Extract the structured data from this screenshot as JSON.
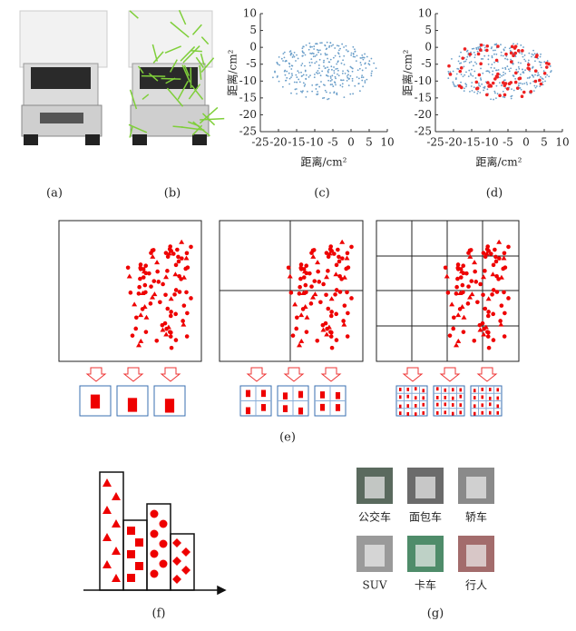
{
  "panel_labels": [
    "(a)",
    "(b)",
    "(c)",
    "(d)",
    "(e)",
    "(f)",
    "(g)"
  ],
  "scatter_plots": [
    {
      "xlabel": "距离/cm²",
      "ylabel": "距离/cm²",
      "xlim": [
        -25,
        10
      ],
      "ylim": [
        -25,
        10
      ],
      "xticks": [
        -25,
        -20,
        -15,
        -10,
        -5,
        0,
        5,
        10
      ],
      "yticks": [
        10,
        5,
        0,
        -5,
        -10,
        -15,
        -20,
        -25
      ]
    },
    {
      "xlabel": "距离/cm²",
      "ylabel": "距离/cm²",
      "xlim": [
        -25,
        10
      ],
      "ylim": [
        -25,
        10
      ],
      "xticks": [
        -25,
        -20,
        -15,
        -10,
        -5,
        0,
        5,
        10
      ],
      "yticks": [
        10,
        5,
        0,
        -5,
        -10,
        -15,
        -20,
        -25
      ]
    }
  ],
  "gallery": {
    "items": [
      "公交车",
      "面包车",
      "轿车",
      "SUV",
      "卡车",
      "行人"
    ]
  }
}
